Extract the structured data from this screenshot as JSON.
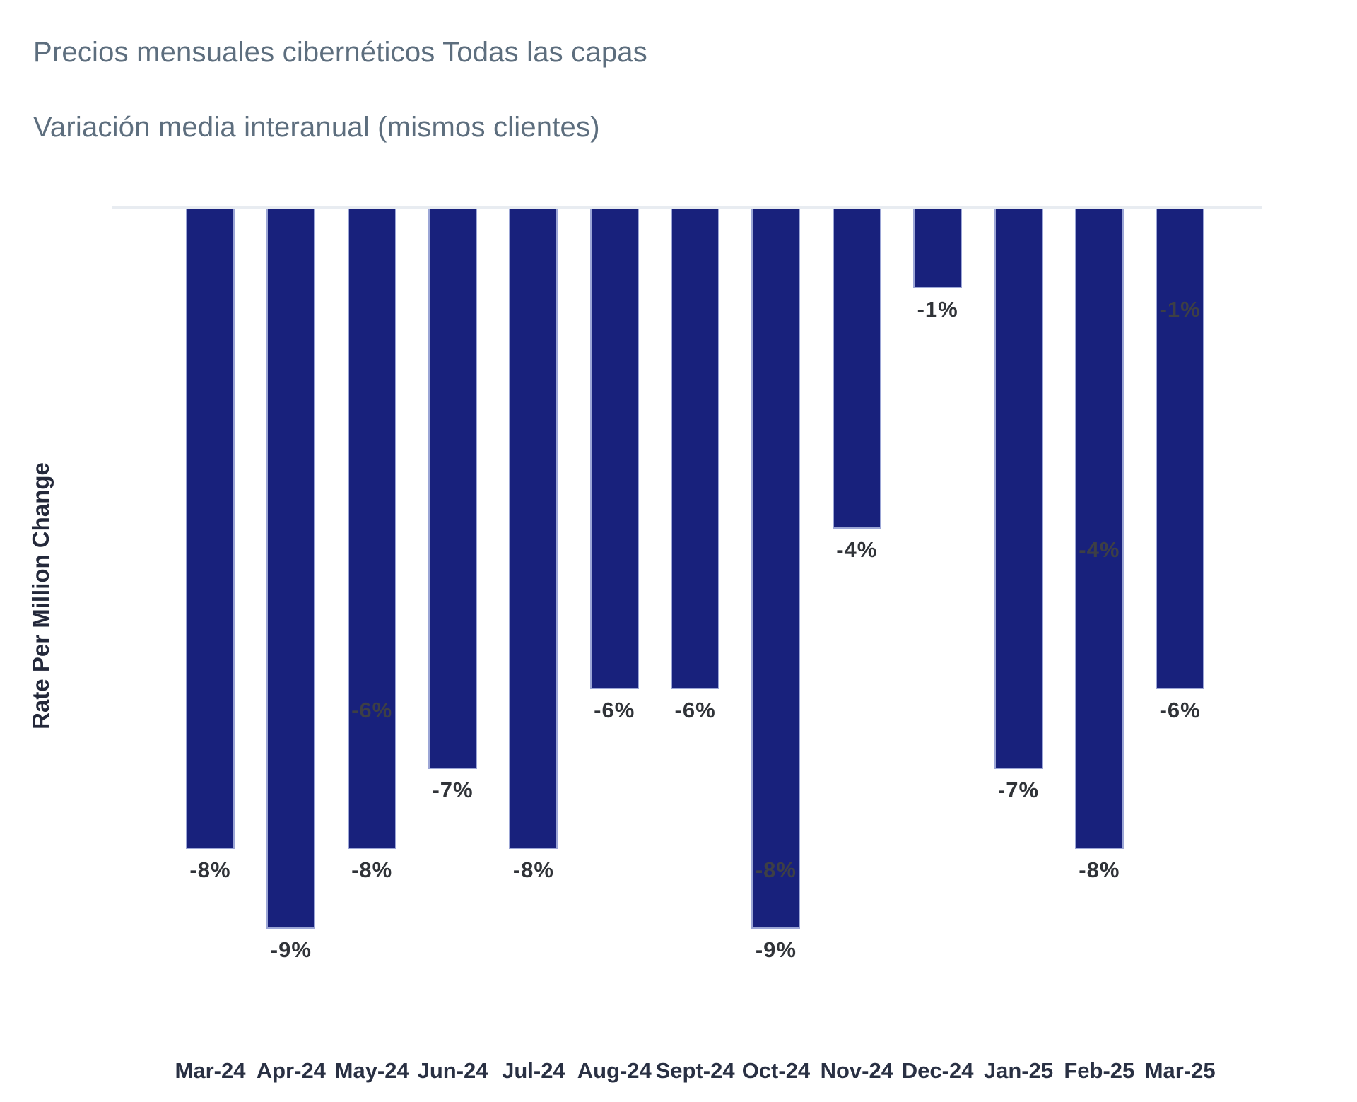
{
  "header": {
    "title": "Precios mensuales cibernéticos Todas las capas",
    "subtitle": "Variación media interanual (mismos clientes)"
  },
  "chart_data": {
    "type": "bar",
    "title": "Precios mensuales cibernéticos Todas las capas",
    "subtitle": "Variación media interanual (mismos clientes)",
    "ylabel": "Rate Per Million Change",
    "xlabel": "",
    "unit": "%",
    "categories": [
      "Mar-24",
      "Apr-24",
      "May-24",
      "Jun-24",
      "Jul-24",
      "Aug-24",
      "Sept-24",
      "Oct-24",
      "Nov-24",
      "Dec-24",
      "Jan-25",
      "Feb-25",
      "Mar-25"
    ],
    "values": [
      -8,
      -9,
      -8,
      -7,
      -8,
      -6,
      -6,
      -9,
      -4,
      -1,
      -7,
      -8,
      -6
    ],
    "bar_labels": [
      "-8%",
      "-9%",
      "-8%",
      "-7%",
      "-8%",
      "-6%",
      "-6%",
      "-9%",
      "-4%",
      "-1%",
      "-7%",
      "-8%",
      "-6%"
    ],
    "inner_labels": [
      {
        "category": "May-24",
        "index": 2,
        "value": -6,
        "label": "-6%"
      },
      {
        "category": "Oct-24",
        "index": 7,
        "value": -8,
        "label": "-8%"
      },
      {
        "category": "Feb-25",
        "index": 11,
        "value": -4,
        "label": "-4%"
      },
      {
        "category": "Mar-25",
        "index": 12,
        "value": -1,
        "label": "-1%"
      }
    ],
    "ylim": [
      -9.5,
      0
    ],
    "grid": false,
    "legend": false,
    "baseline_at_zero": true
  },
  "colors": {
    "background": "#ffffff",
    "bar": "#18217c",
    "bar_border": "#9ca6d6",
    "baseline": "#e8ecf1",
    "title_text": "#5d6e7e",
    "value_label": "#303338",
    "inner_label": "#3d3f45",
    "axis_label": "#293043",
    "ylabel_text": "#23283a"
  }
}
